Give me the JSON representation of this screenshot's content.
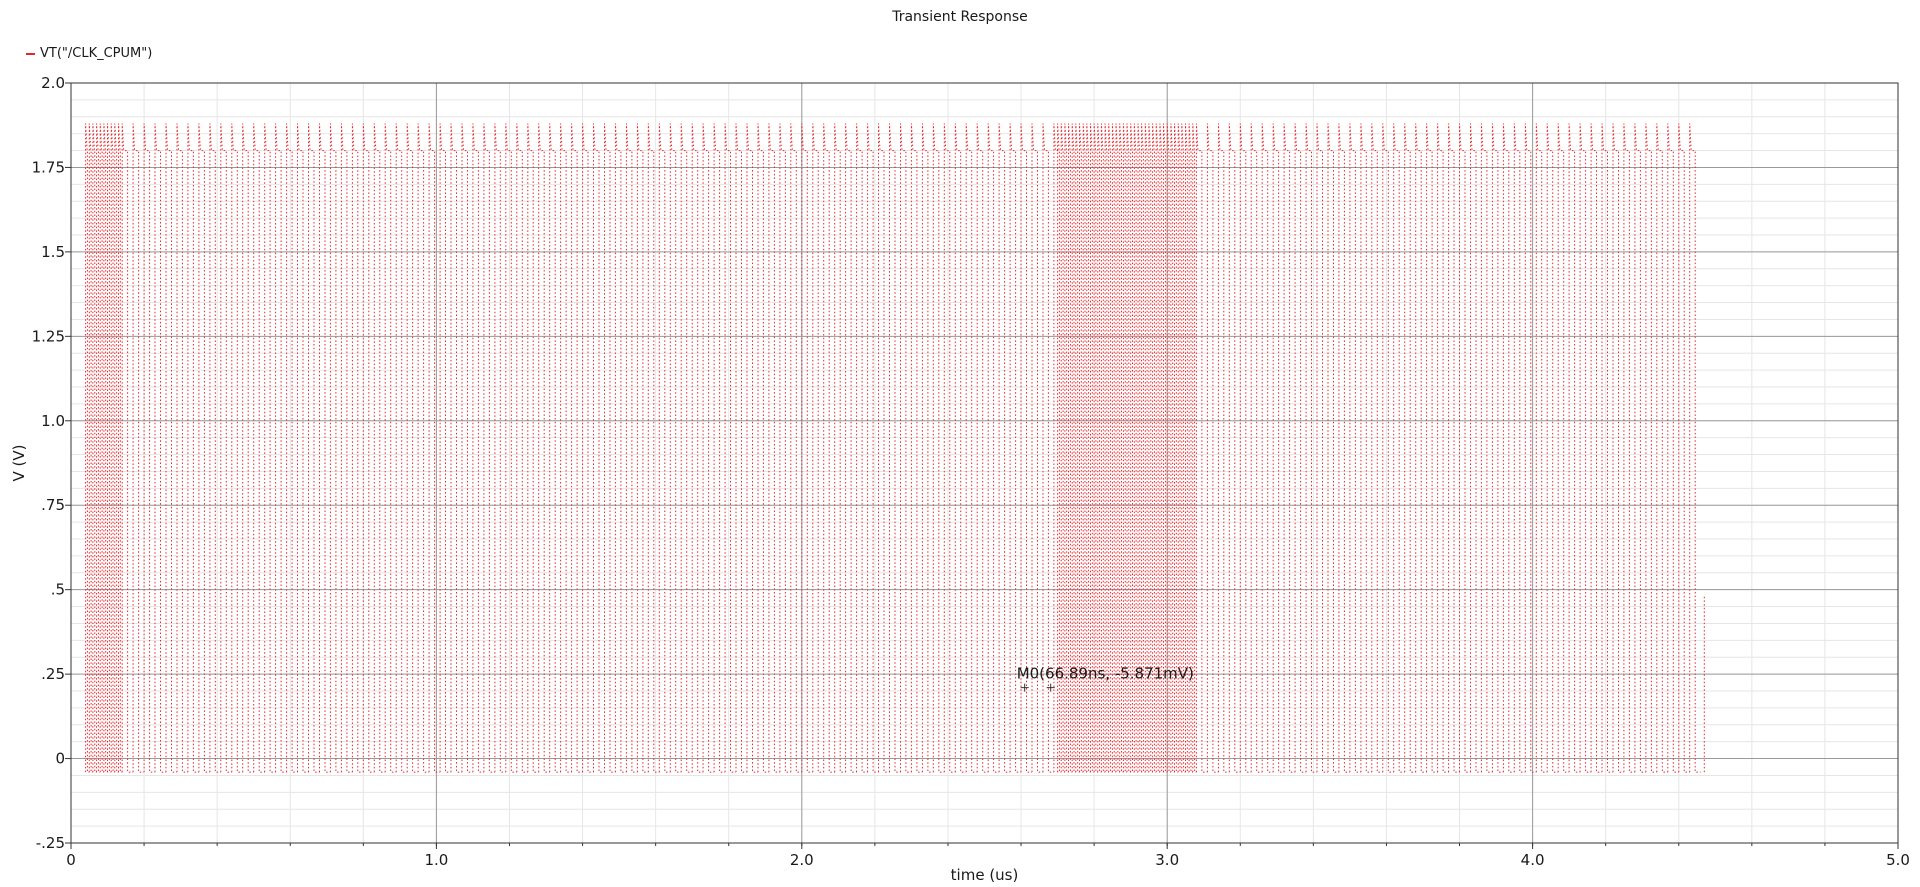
{
  "chart_data": {
    "type": "line",
    "title": "Transient Response",
    "xlabel": "time (us)",
    "ylabel": "V (V)",
    "xlim": [
      0,
      5.0
    ],
    "ylim": [
      -0.25,
      2.0
    ],
    "grid": true,
    "legend_placement": "top-left",
    "x_ticks": [
      "0",
      "1.0",
      "2.0",
      "3.0",
      "4.0",
      "5.0"
    ],
    "y_ticks": [
      "-.25",
      "0",
      ".25",
      ".5",
      ".75",
      "1.0",
      "1.25",
      "1.5",
      "1.75",
      "2.0"
    ],
    "series": [
      {
        "name": "VT(\"/CLK_CPUM\")",
        "color": "#e8252b",
        "style": "dotted",
        "low": -0.04,
        "high": 1.8,
        "overshoot": 1.88,
        "segments": [
          {
            "start": 0.04,
            "end": 0.14,
            "period": 0.01
          },
          {
            "start": 0.14,
            "end": 2.7,
            "period": 0.03
          },
          {
            "start": 2.7,
            "end": 3.08,
            "period": 0.01
          },
          {
            "start": 3.08,
            "end": 4.46,
            "period": 0.03
          }
        ],
        "end_x": 4.47,
        "end_y": 0.48
      }
    ],
    "marker": {
      "label": "M0(66.89ns, -5.871mV)",
      "x": 2.61,
      "y": 0.21
    }
  }
}
